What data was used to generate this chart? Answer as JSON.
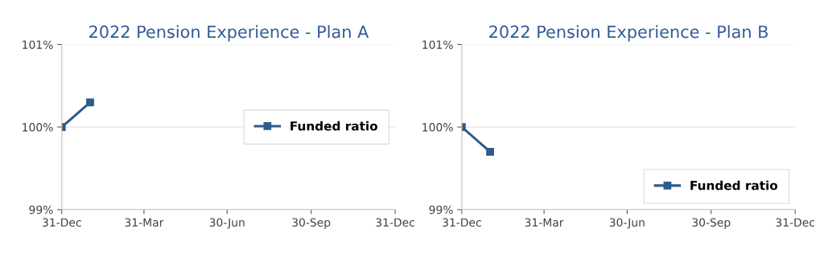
{
  "chart_data": [
    {
      "type": "line",
      "title": "2022 Pension Experience - Plan A",
      "x": [
        "2021-12-31",
        "2022-01-31"
      ],
      "series": [
        {
          "name": "Funded ratio",
          "color": "#2e5a8c",
          "values": [
            100.0,
            100.3
          ]
        }
      ],
      "xlim": [
        "2021-12-31",
        "2022-12-31"
      ],
      "xticks": [
        {
          "value": "2021-12-31",
          "label": "31-Dec"
        },
        {
          "value": "2022-03-31",
          "label": "31-Mar"
        },
        {
          "value": "2022-06-30",
          "label": "30-Jun"
        },
        {
          "value": "2022-09-30",
          "label": "30-Sep"
        },
        {
          "value": "2022-12-31",
          "label": "31-Dec"
        }
      ],
      "ylim": [
        99,
        101
      ],
      "yticks": [
        {
          "value": 99,
          "label": "99%"
        },
        {
          "value": 100,
          "label": "100%"
        },
        {
          "value": 101,
          "label": "101%"
        }
      ],
      "grid": "y",
      "legend": "center right",
      "marker": "square",
      "line_style": "solid"
    },
    {
      "type": "line",
      "title": "2022 Pension Experience - Plan B",
      "x": [
        "2021-12-31",
        "2022-01-31"
      ],
      "series": [
        {
          "name": "Funded ratio",
          "color": "#2e5a8c",
          "values": [
            100.0,
            99.7
          ]
        }
      ],
      "xlim": [
        "2021-12-31",
        "2022-12-31"
      ],
      "xticks": [
        {
          "value": "2021-12-31",
          "label": "31-Dec"
        },
        {
          "value": "2022-03-31",
          "label": "31-Mar"
        },
        {
          "value": "2022-06-30",
          "label": "30-Jun"
        },
        {
          "value": "2022-09-30",
          "label": "30-Sep"
        },
        {
          "value": "2022-12-31",
          "label": "31-Dec"
        }
      ],
      "ylim": [
        99,
        101
      ],
      "yticks": [
        {
          "value": 99,
          "label": "99%"
        },
        {
          "value": 100,
          "label": "100%"
        },
        {
          "value": 101,
          "label": "101%"
        }
      ],
      "grid": "y",
      "legend": "lower right",
      "marker": "square",
      "line_style": "solid"
    }
  ]
}
